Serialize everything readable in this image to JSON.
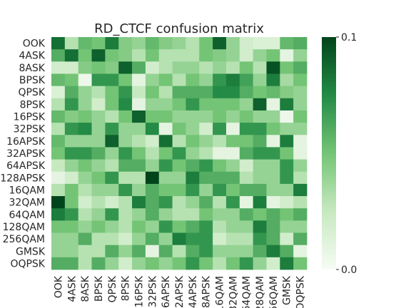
{
  "chart_data": {
    "type": "heatmap",
    "title": "RD_CTCF confusion matrix",
    "xlabel": "",
    "ylabel": "",
    "labels": [
      "OOK",
      "4ASK",
      "8ASK",
      "BPSK",
      "QPSK",
      "8PSK",
      "16PSK",
      "32PSK",
      "16APSK",
      "32APSK",
      "64APSK",
      "128APSK",
      "16QAM",
      "32QAM",
      "64QAM",
      "128QAM",
      "256QAM",
      "GMSK",
      "OQPSK"
    ],
    "colorbar": {
      "min": 0.0,
      "max": 0.1,
      "min_label": "0.0",
      "max_label": "0.1"
    },
    "colormap": [
      "#f7fcf5",
      "#c7e9c0",
      "#74c476",
      "#238b45",
      "#00441b"
    ],
    "values": [
      [
        0.085,
        0.03,
        0.055,
        0.05,
        0.08,
        0.045,
        0.04,
        0.055,
        0.045,
        0.04,
        0.03,
        0.05,
        0.09,
        0.04,
        0.02,
        0.015,
        0.015,
        0.055,
        0.06
      ],
      [
        0.06,
        0.085,
        0.05,
        0.09,
        0.05,
        0.045,
        0.03,
        0.05,
        0.03,
        0.03,
        0.03,
        0.05,
        0.045,
        0.04,
        0.02,
        0.04,
        0.05,
        0.01,
        0.04
      ],
      [
        0.02,
        0.02,
        0.045,
        0.05,
        0.045,
        0.09,
        0.06,
        0.02,
        0.03,
        0.04,
        0.04,
        0.03,
        0.04,
        0.03,
        0.05,
        0.03,
        0.095,
        0.05,
        0.06
      ],
      [
        0.055,
        0.05,
        0.005,
        0.07,
        0.07,
        0.05,
        0.01,
        0.04,
        0.05,
        0.03,
        0.05,
        0.04,
        0.07,
        0.08,
        0.065,
        0.04,
        0.08,
        0.035,
        0.05
      ],
      [
        0.015,
        0.06,
        0.04,
        0.03,
        0.05,
        0.07,
        0.025,
        0.05,
        0.03,
        0.06,
        0.06,
        0.06,
        0.075,
        0.075,
        0.06,
        0.05,
        0.055,
        0.045,
        0.04
      ],
      [
        0.03,
        0.07,
        0.04,
        0.02,
        0.05,
        0.075,
        0.01,
        0.04,
        0.04,
        0.05,
        0.07,
        0.05,
        0.05,
        0.05,
        0.04,
        0.09,
        0.01,
        0.08,
        0.04
      ],
      [
        0.055,
        0.045,
        0.05,
        0.04,
        0.03,
        0.05,
        0.09,
        0.05,
        0.05,
        0.04,
        0.04,
        0.04,
        0.05,
        0.04,
        0.05,
        0.04,
        0.04,
        0.005,
        0.05
      ],
      [
        0.03,
        0.07,
        0.075,
        0.04,
        0.07,
        0.04,
        0.04,
        0.075,
        0.01,
        0.05,
        0.04,
        0.02,
        0.07,
        0.01,
        0.07,
        0.07,
        0.05,
        0.04,
        0.04
      ],
      [
        0.055,
        0.04,
        0.04,
        0.04,
        0.09,
        0.04,
        0.03,
        0.02,
        0.085,
        0.03,
        0.05,
        0.04,
        0.03,
        0.05,
        0.05,
        0.06,
        0.01,
        0.08,
        0.01
      ],
      [
        0.05,
        0.07,
        0.07,
        0.06,
        0.04,
        0.07,
        0.05,
        0.03,
        0.05,
        0.07,
        0.04,
        0.03,
        0.01,
        0.01,
        0.06,
        0.07,
        0.07,
        0.05,
        0.01
      ],
      [
        0.025,
        0.04,
        0.05,
        0.04,
        0.03,
        0.06,
        0.06,
        0.04,
        0.07,
        0.05,
        0.06,
        0.07,
        0.05,
        0.04,
        0.02,
        0.04,
        0.04,
        0.07,
        0.04
      ],
      [
        0.01,
        0.02,
        0.04,
        0.05,
        0.07,
        0.03,
        0.03,
        0.1,
        0.04,
        0.04,
        0.08,
        0.06,
        0.06,
        0.06,
        0.03,
        0.04,
        0.04,
        0.07,
        0.03
      ],
      [
        0.03,
        0.05,
        0.03,
        0.04,
        0.04,
        0.07,
        0.04,
        0.06,
        0.05,
        0.05,
        0.07,
        0.04,
        0.07,
        0.05,
        0.06,
        0.06,
        0.04,
        0.04,
        0.08
      ],
      [
        0.1,
        0.05,
        0.02,
        0.03,
        0.02,
        0.03,
        0.08,
        0.06,
        0.07,
        0.03,
        0.04,
        0.06,
        0.03,
        0.07,
        0.01,
        0.08,
        0.01,
        0.02,
        0.03
      ],
      [
        0.08,
        0.07,
        0.03,
        0.04,
        0.07,
        0.03,
        0.04,
        0.06,
        0.04,
        0.03,
        0.03,
        0.05,
        0.04,
        0.04,
        0.06,
        0.05,
        0.06,
        0.05,
        0.06
      ],
      [
        0.05,
        0.05,
        0.04,
        0.05,
        0.04,
        0.03,
        0.05,
        0.04,
        0.07,
        0.05,
        0.06,
        0.07,
        0.03,
        0.04,
        0.04,
        0.08,
        0.06,
        0.04,
        0.04
      ],
      [
        0.04,
        0.04,
        0.06,
        0.03,
        0.03,
        0.02,
        0.04,
        0.06,
        0.04,
        0.08,
        0.07,
        0.07,
        0.02,
        0.03,
        0.03,
        0.07,
        0.06,
        0.02,
        0.06
      ],
      [
        0.04,
        0.04,
        0.03,
        0.03,
        0.06,
        0.04,
        0.06,
        0.01,
        0.06,
        0.03,
        0.06,
        0.07,
        0.04,
        0.04,
        0.04,
        0.06,
        0.08,
        0.06,
        0.01
      ],
      [
        0.06,
        0.06,
        0.03,
        0.06,
        0.04,
        0.02,
        0.04,
        0.05,
        0.04,
        0.05,
        0.07,
        0.05,
        0.03,
        0.05,
        0.07,
        0.04,
        0.02,
        0.08,
        0.05
      ]
    ]
  }
}
